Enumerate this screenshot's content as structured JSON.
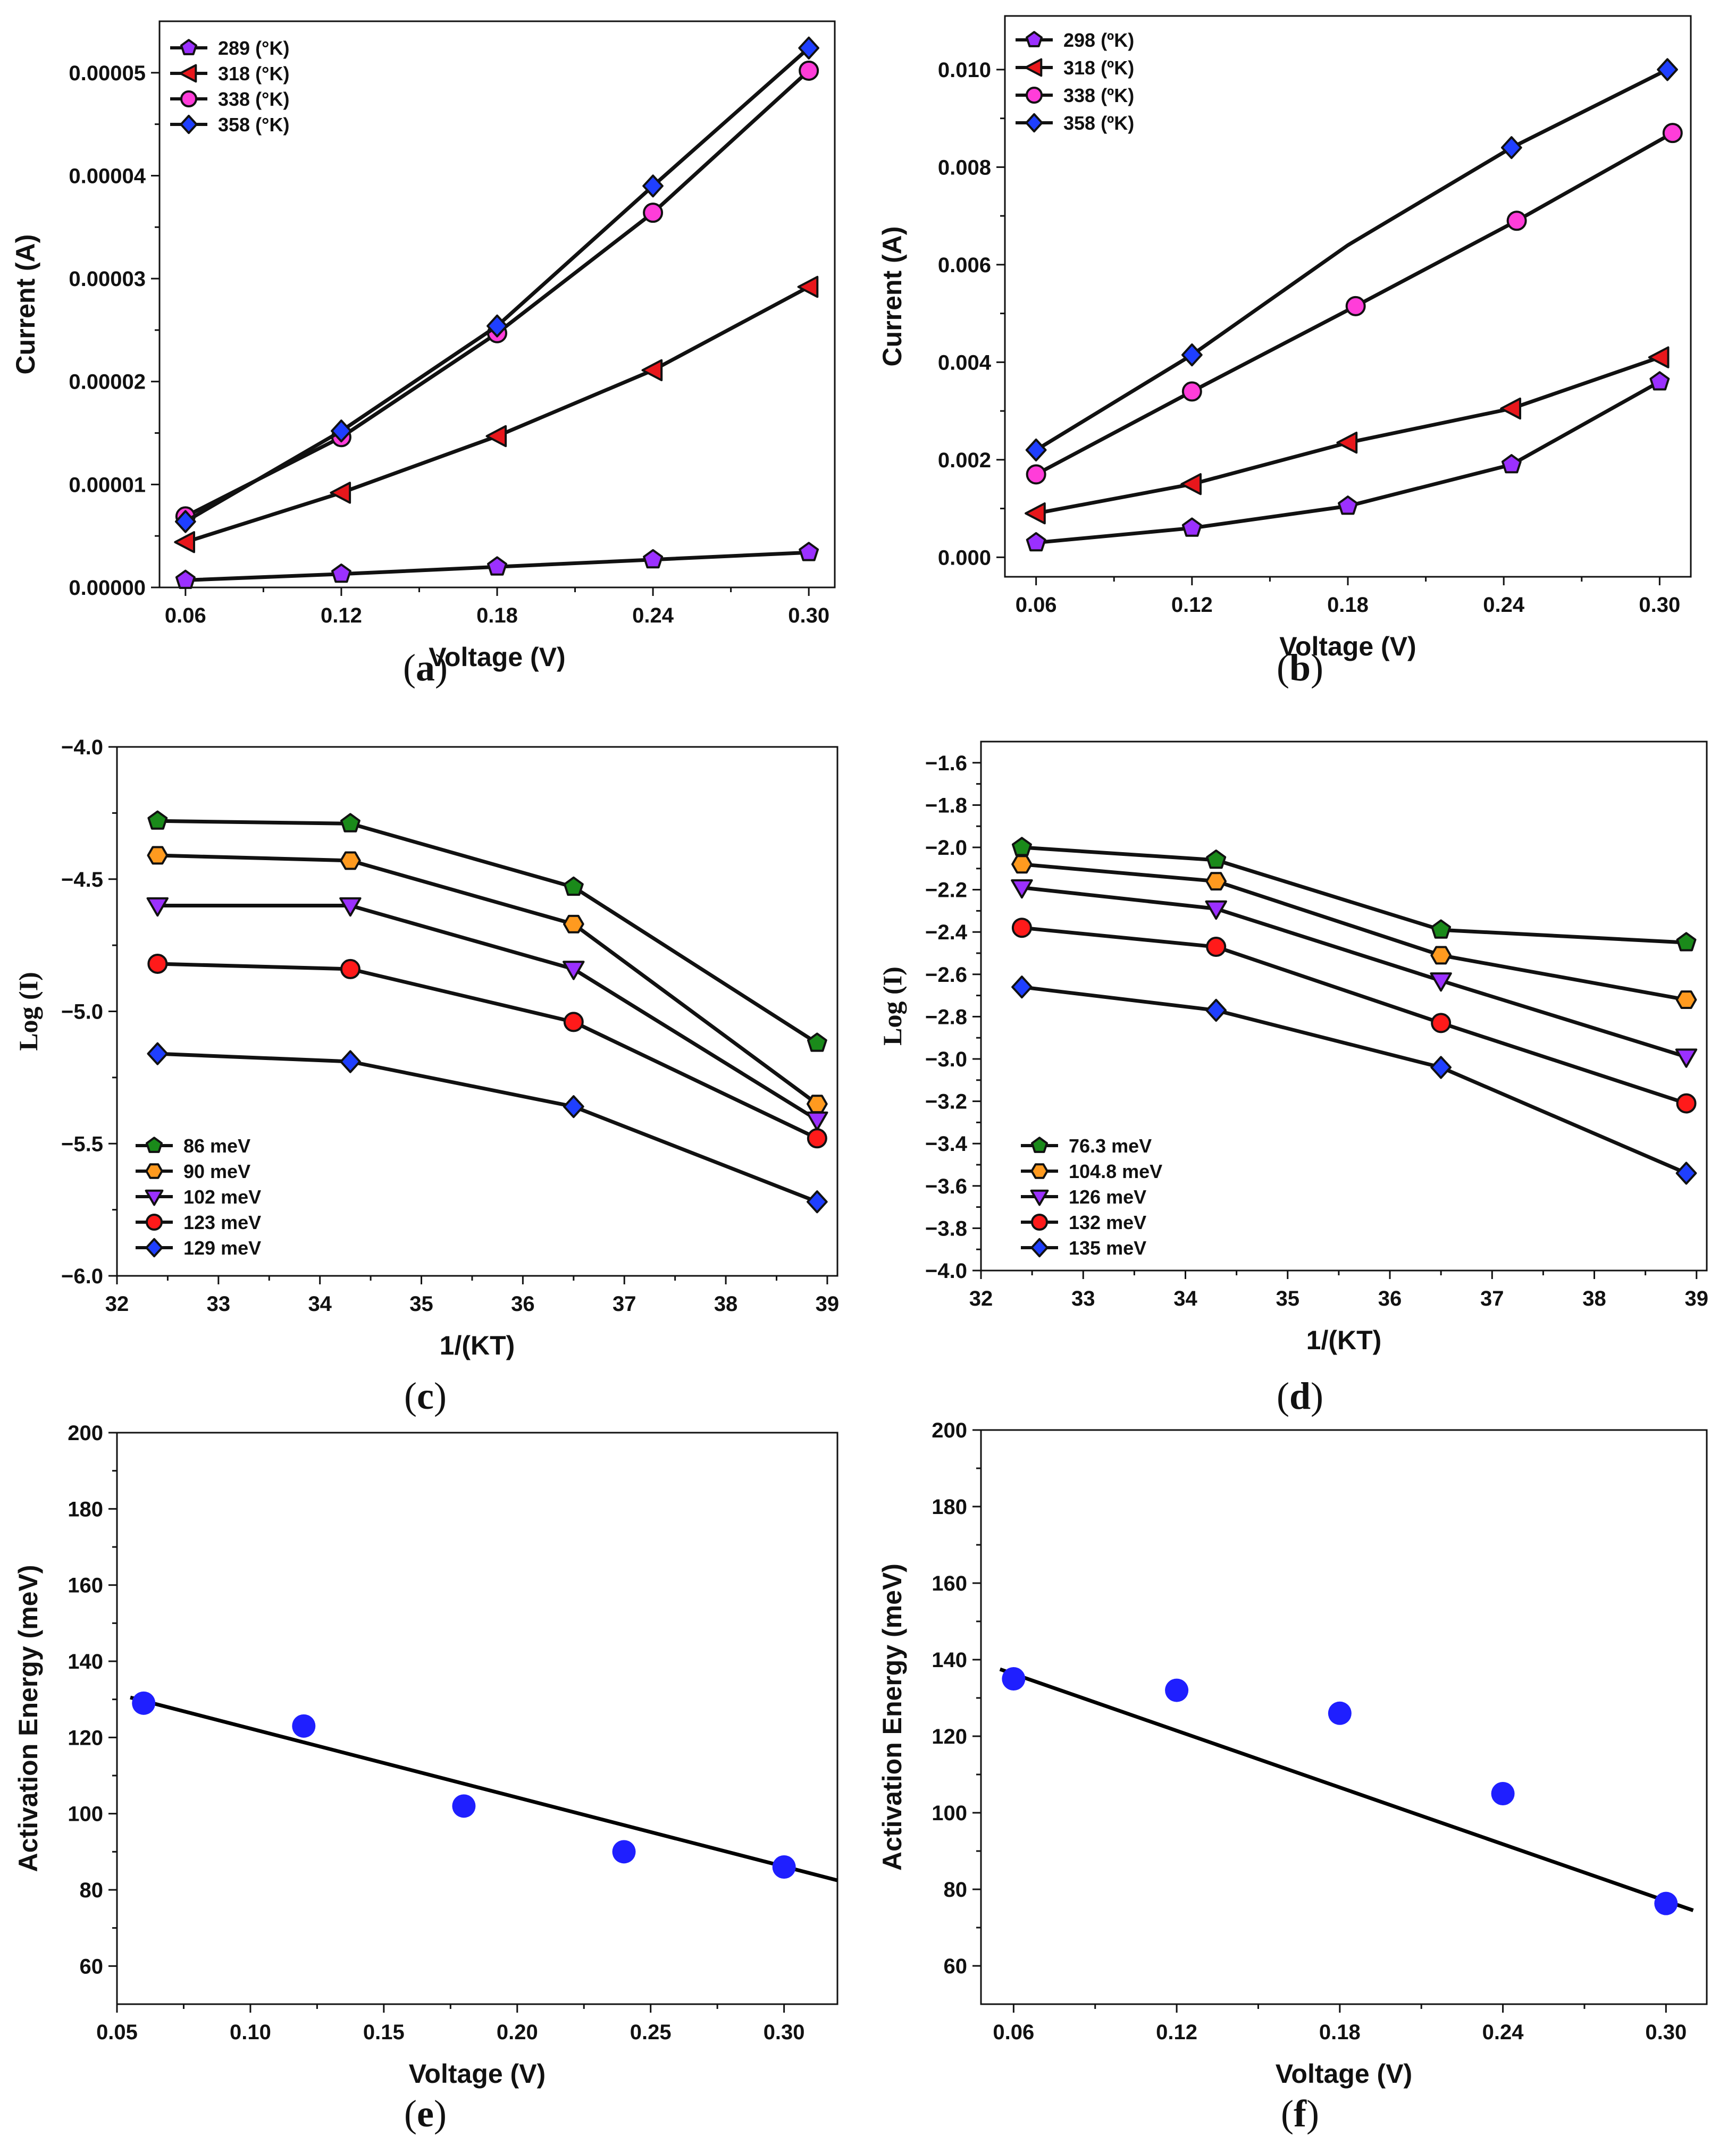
{
  "chart_data": [
    {
      "id": "a",
      "type": "line",
      "caption": "a",
      "xlabel": "Voltage (V)",
      "ylabel": "Current (A)",
      "xlim": [
        0.05,
        0.31
      ],
      "ylim": [
        0.0,
        5.5e-05
      ],
      "xticks": [
        0.06,
        0.12,
        0.18,
        0.24,
        0.3
      ],
      "xtick_labels": [
        "0.06",
        "0.12",
        "0.18",
        "0.24",
        "0.30"
      ],
      "yticks": [
        0,
        1e-05,
        2e-05,
        3e-05,
        4e-05,
        5e-05
      ],
      "ytick_labels": [
        "0.00000",
        "0.00001",
        "0.00002",
        "0.00003",
        "0.00004",
        "0.00005"
      ],
      "legend_position": "top-left",
      "series": [
        {
          "name": "289 (°K)",
          "marker": "pentagon",
          "color": "#9b30ff",
          "x": [
            0.06,
            0.12,
            0.18,
            0.24,
            0.3
          ],
          "y": [
            7e-07,
            1.3e-06,
            2e-06,
            2.7e-06,
            3.4e-06
          ]
        },
        {
          "name": "318 (°K)",
          "marker": "triangle-left",
          "color": "#e8171c",
          "x": [
            0.06,
            0.12,
            0.18,
            0.24,
            0.3
          ],
          "y": [
            4.4e-06,
            9.2e-06,
            1.47e-05,
            2.11e-05,
            2.92e-05
          ]
        },
        {
          "name": "338 (°K)",
          "marker": "circle",
          "color": "#ff3dd9",
          "x": [
            0.06,
            0.12,
            0.18,
            0.24,
            0.3
          ],
          "y": [
            6.9e-06,
            1.46e-05,
            2.47e-05,
            3.64e-05,
            5.02e-05
          ]
        },
        {
          "name": "358 (°K)",
          "marker": "diamond",
          "color": "#1f3fff",
          "x": [
            0.06,
            0.12,
            0.18,
            0.24,
            0.3
          ],
          "y": [
            6.4e-06,
            1.52e-05,
            2.54e-05,
            3.9e-05,
            5.24e-05
          ]
        }
      ]
    },
    {
      "id": "b",
      "type": "line",
      "caption": "b",
      "xlabel": "Voltage (V)",
      "ylabel": "Current (A)",
      "xlim": [
        0.048,
        0.312
      ],
      "ylim": [
        -0.0004,
        0.0111
      ],
      "xticks": [
        0.06,
        0.12,
        0.18,
        0.24,
        0.3
      ],
      "xtick_labels": [
        "0.06",
        "0.12",
        "0.18",
        "0.24",
        "0.30"
      ],
      "yticks": [
        0.0,
        0.002,
        0.004,
        0.006,
        0.008,
        0.01
      ],
      "ytick_labels": [
        "0.000",
        "0.002",
        "0.004",
        "0.006",
        "0.008",
        "0.010"
      ],
      "legend_position": "top-left",
      "series": [
        {
          "name": "298 (ºK)",
          "marker": "pentagon",
          "color": "#9b30ff",
          "x": [
            0.06,
            0.12,
            0.18,
            0.243,
            0.3
          ],
          "y": [
            0.0003,
            0.0006,
            0.00105,
            0.0019,
            0.0036
          ]
        },
        {
          "name": "318 (ºK)",
          "marker": "triangle-left",
          "color": "#e8171c",
          "x": [
            0.06,
            0.12,
            0.18,
            0.243,
            0.3
          ],
          "y": [
            0.0009,
            0.0015,
            0.00235,
            0.00305,
            0.0041
          ]
        },
        {
          "name": "338 (ºK)",
          "marker": "circle",
          "color": "#ff3dd9",
          "x": [
            0.06,
            0.12,
            0.183,
            0.245,
            0.305
          ],
          "y": [
            0.0017,
            0.0034,
            0.00515,
            0.0069,
            0.0087
          ]
        },
        {
          "name": "358 (ºK)",
          "marker": "diamond",
          "color": "#1f3fff",
          "x": [
            0.06,
            0.12,
            0.18,
            0.243,
            0.303
          ],
          "y": [
            0.0022,
            0.00415,
            0.0064,
            0.0084,
            0.01
          ],
          "unmarked_x": [
            0.18
          ]
        }
      ]
    },
    {
      "id": "c",
      "type": "line",
      "caption": "c",
      "xlabel": "1/(KT)",
      "ylabel": "Log (I)",
      "xlim": [
        32,
        39.1
      ],
      "ylim": [
        -6.0,
        -4.0
      ],
      "xticks": [
        32,
        33,
        34,
        35,
        36,
        37,
        38,
        39
      ],
      "xtick_labels": [
        "32",
        "33",
        "34",
        "35",
        "36",
        "37",
        "38",
        "39"
      ],
      "yticks": [
        -6.0,
        -5.5,
        -5.0,
        -4.5,
        -4.0
      ],
      "ytick_labels": [
        "−6.0",
        "−5.5",
        "−5.0",
        "−4.5",
        "−4.0"
      ],
      "legend_position": "bottom-left",
      "series": [
        {
          "name": "86 meV",
          "marker": "pentagon",
          "color": "#1a8a1a",
          "x": [
            32.4,
            34.3,
            36.5,
            38.9
          ],
          "y": [
            -4.28,
            -4.29,
            -4.53,
            -5.12
          ]
        },
        {
          "name": "90 meV",
          "marker": "hexagon",
          "color": "#ff9a1f",
          "x": [
            32.4,
            34.3,
            36.5,
            38.9
          ],
          "y": [
            -4.41,
            -4.43,
            -4.67,
            -5.35
          ]
        },
        {
          "name": "102 meV",
          "marker": "triangle-down",
          "color": "#9b30ff",
          "x": [
            32.4,
            34.3,
            36.5,
            38.9
          ],
          "y": [
            -4.6,
            -4.6,
            -4.84,
            -5.41
          ]
        },
        {
          "name": "123 meV",
          "marker": "circle",
          "color": "#ff1a1a",
          "x": [
            32.4,
            34.3,
            36.5,
            38.9
          ],
          "y": [
            -4.82,
            -4.84,
            -5.04,
            -5.48
          ]
        },
        {
          "name": "129 meV",
          "marker": "diamond",
          "color": "#1f3fff",
          "x": [
            32.4,
            34.3,
            36.5,
            38.9
          ],
          "y": [
            -5.16,
            -5.19,
            -5.36,
            -5.72
          ]
        }
      ]
    },
    {
      "id": "d",
      "type": "line",
      "caption": "d",
      "xlabel": "1/(KT)",
      "ylabel": "Log (I)",
      "xlim": [
        32,
        39.1
      ],
      "ylim": [
        -4.0,
        -1.5
      ],
      "xticks": [
        32,
        33,
        34,
        35,
        36,
        37,
        38,
        39
      ],
      "xtick_labels": [
        "32",
        "33",
        "34",
        "35",
        "36",
        "37",
        "38",
        "39"
      ],
      "yticks": [
        -4.0,
        -3.8,
        -3.6,
        -3.4,
        -3.2,
        -3.0,
        -2.8,
        -2.6,
        -2.4,
        -2.2,
        -2.0,
        -1.8,
        -1.6
      ],
      "ytick_labels": [
        "−4.0",
        "−3.8",
        "−3.6",
        "−3.4",
        "−3.2",
        "−3.0",
        "−2.8",
        "−2.6",
        "−2.4",
        "−2.2",
        "−2.0",
        "−1.8",
        "−1.6"
      ],
      "legend_position": "bottom-left",
      "series": [
        {
          "name": "76.3 meV",
          "marker": "pentagon",
          "color": "#1a8a1a",
          "x": [
            32.4,
            34.3,
            36.5,
            38.9
          ],
          "y": [
            -2.0,
            -2.06,
            -2.39,
            -2.45
          ]
        },
        {
          "name": "104.8 meV",
          "marker": "hexagon",
          "color": "#ff9a1f",
          "x": [
            32.4,
            34.3,
            36.5,
            38.9
          ],
          "y": [
            -2.08,
            -2.16,
            -2.51,
            -2.72
          ]
        },
        {
          "name": "126 meV",
          "marker": "triangle-down",
          "color": "#9b30ff",
          "x": [
            32.4,
            34.3,
            36.5,
            38.9
          ],
          "y": [
            -2.19,
            -2.29,
            -2.63,
            -2.99
          ]
        },
        {
          "name": "132 meV",
          "marker": "circle",
          "color": "#ff1a1a",
          "x": [
            32.4,
            34.3,
            36.5,
            38.9
          ],
          "y": [
            -2.38,
            -2.47,
            -2.83,
            -3.21
          ]
        },
        {
          "name": "135 meV",
          "marker": "diamond",
          "color": "#1f3fff",
          "x": [
            32.4,
            34.3,
            36.5,
            38.9
          ],
          "y": [
            -2.66,
            -2.77,
            -3.04,
            -3.54
          ]
        }
      ]
    },
    {
      "id": "e",
      "type": "scatter",
      "caption": "e",
      "xlabel": "Voltage (V)",
      "ylabel": "Activation Energy (meV)",
      "xlim": [
        0.05,
        0.32
      ],
      "ylim": [
        50,
        200
      ],
      "xticks": [
        0.05,
        0.1,
        0.15,
        0.2,
        0.25,
        0.3
      ],
      "xtick_labels": [
        "0.05",
        "0.10",
        "0.15",
        "0.20",
        "0.25",
        "0.30"
      ],
      "yticks": [
        60,
        80,
        100,
        120,
        140,
        160,
        180,
        200
      ],
      "ytick_labels": [
        "60",
        "80",
        "100",
        "120",
        "140",
        "160",
        "180",
        "200"
      ],
      "points": {
        "x": [
          0.06,
          0.12,
          0.18,
          0.24,
          0.3
        ],
        "y": [
          129,
          123,
          102,
          90,
          86
        ],
        "color": "#1f1fff"
      },
      "fit_line": {
        "x": [
          0.055,
          0.32
        ],
        "y": [
          130.5,
          82.5
        ],
        "color": "#000000"
      }
    },
    {
      "id": "f",
      "type": "scatter",
      "caption": "f",
      "xlabel": "Voltage (V)",
      "ylabel": "Activation Energy (meV)",
      "xlim": [
        0.048,
        0.315
      ],
      "ylim": [
        50,
        200
      ],
      "xticks": [
        0.06,
        0.12,
        0.18,
        0.24,
        0.3
      ],
      "xtick_labels": [
        "0.06",
        "0.12",
        "0.18",
        "0.24",
        "0.30"
      ],
      "yticks": [
        60,
        80,
        100,
        120,
        140,
        160,
        180,
        200
      ],
      "ytick_labels": [
        "60",
        "80",
        "100",
        "120",
        "140",
        "160",
        "180",
        "200"
      ],
      "points": {
        "x": [
          0.06,
          0.12,
          0.18,
          0.24,
          0.3
        ],
        "y": [
          135,
          132,
          126,
          105,
          76.3
        ],
        "color": "#1f1fff"
      },
      "fit_line": {
        "x": [
          0.055,
          0.31
        ],
        "y": [
          137.5,
          74.5
        ],
        "color": "#000000"
      }
    }
  ]
}
